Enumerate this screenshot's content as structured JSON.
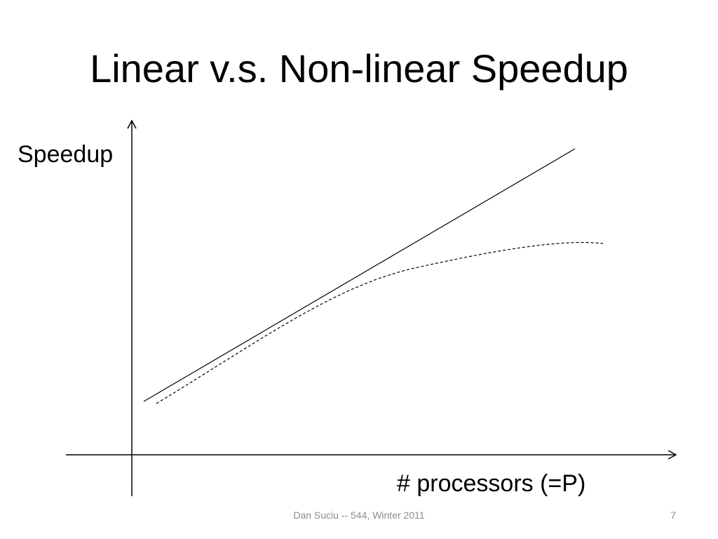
{
  "slide": {
    "title": "Linear v.s. Non-linear Speedup",
    "footer": "Dan Suciu -- 544, Winter 2011",
    "page_number": "7"
  },
  "diagram": {
    "y_axis_label": "Speedup",
    "x_axis_label": "# processors (=P)",
    "curves": [
      {
        "id": "linear",
        "style": "solid"
      },
      {
        "id": "non-linear",
        "style": "dashed"
      }
    ],
    "line_color": "#000000"
  }
}
